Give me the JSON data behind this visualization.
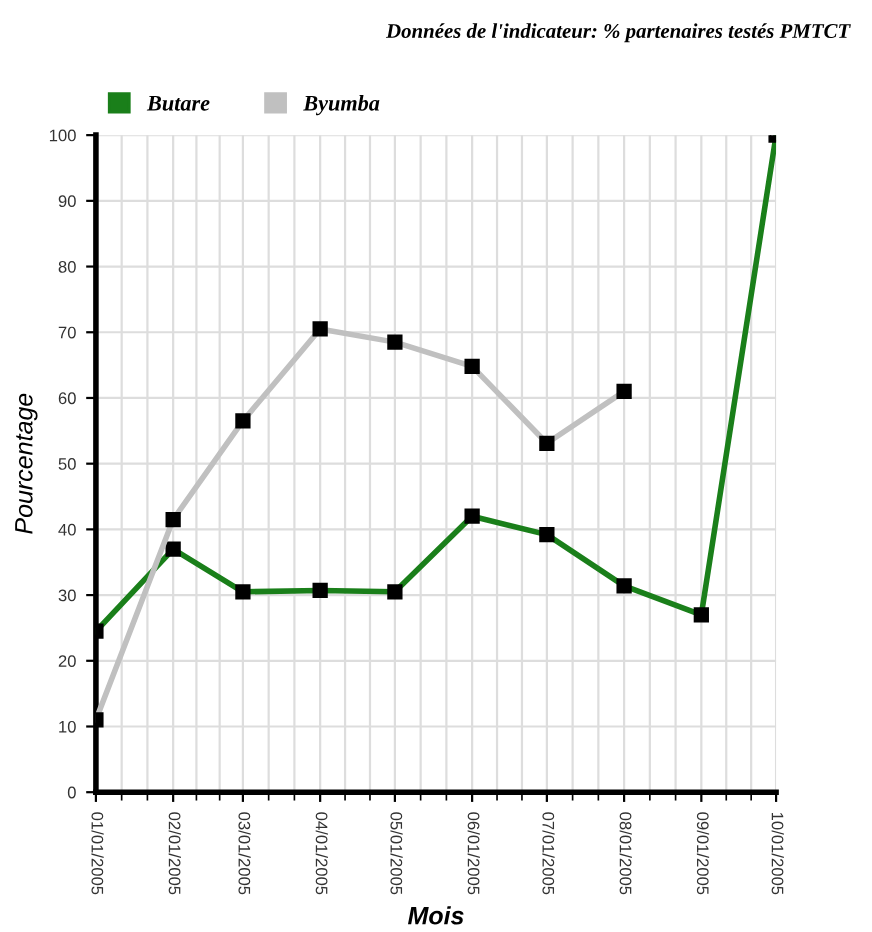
{
  "chart_data": {
    "type": "line",
    "title": "Données de l'indicateur: % partenaires testés PMTCT",
    "xlabel": "Mois",
    "ylabel": "Pourcentage",
    "x": [
      "2005-01-01",
      "2005-02-01",
      "2005-03-01",
      "2005-04-01",
      "2005-05-01",
      "2005-06-01",
      "2005-07-01",
      "2005-08-01",
      "2005-09-01",
      "2005-10-01"
    ],
    "series": [
      {
        "name": "Butare",
        "color": "#1a7f1a",
        "values": [
          24.5,
          37,
          30.5,
          30.7,
          30.5,
          42,
          39.2,
          31.4,
          27,
          100
        ]
      },
      {
        "name": "Byumba",
        "color": "#c0c0c0",
        "values": [
          11,
          41.5,
          56.5,
          70.5,
          68.5,
          64.8,
          53.1,
          61,
          null,
          null
        ]
      }
    ],
    "xlim": [
      "2005-01-01",
      "2005-10-01"
    ],
    "xticks": [
      {
        "value": "2005-01-01",
        "label": "01/01/2005"
      },
      {
        "value": "2005-02-01",
        "label": "02/01/2005"
      },
      {
        "value": "2005-03-01",
        "label": "03/01/2005"
      },
      {
        "value": "2005-04-01",
        "label": "04/01/2005"
      },
      {
        "value": "2005-05-01",
        "label": "05/01/2005"
      },
      {
        "value": "2005-06-01",
        "label": "06/01/2005"
      },
      {
        "value": "2005-07-01",
        "label": "07/01/2005"
      },
      {
        "value": "2005-08-01",
        "label": "08/01/2005"
      },
      {
        "value": "2005-09-01",
        "label": "09/01/2005"
      },
      {
        "value": "2005-10-01",
        "label": "10/01/2005"
      }
    ],
    "ylim": [
      0,
      100
    ],
    "yticks": [
      0,
      10,
      20,
      30,
      40,
      50,
      60,
      70,
      80,
      90,
      100
    ],
    "grid": true,
    "legend": "top left",
    "marker": "square",
    "line_style": "solid"
  }
}
